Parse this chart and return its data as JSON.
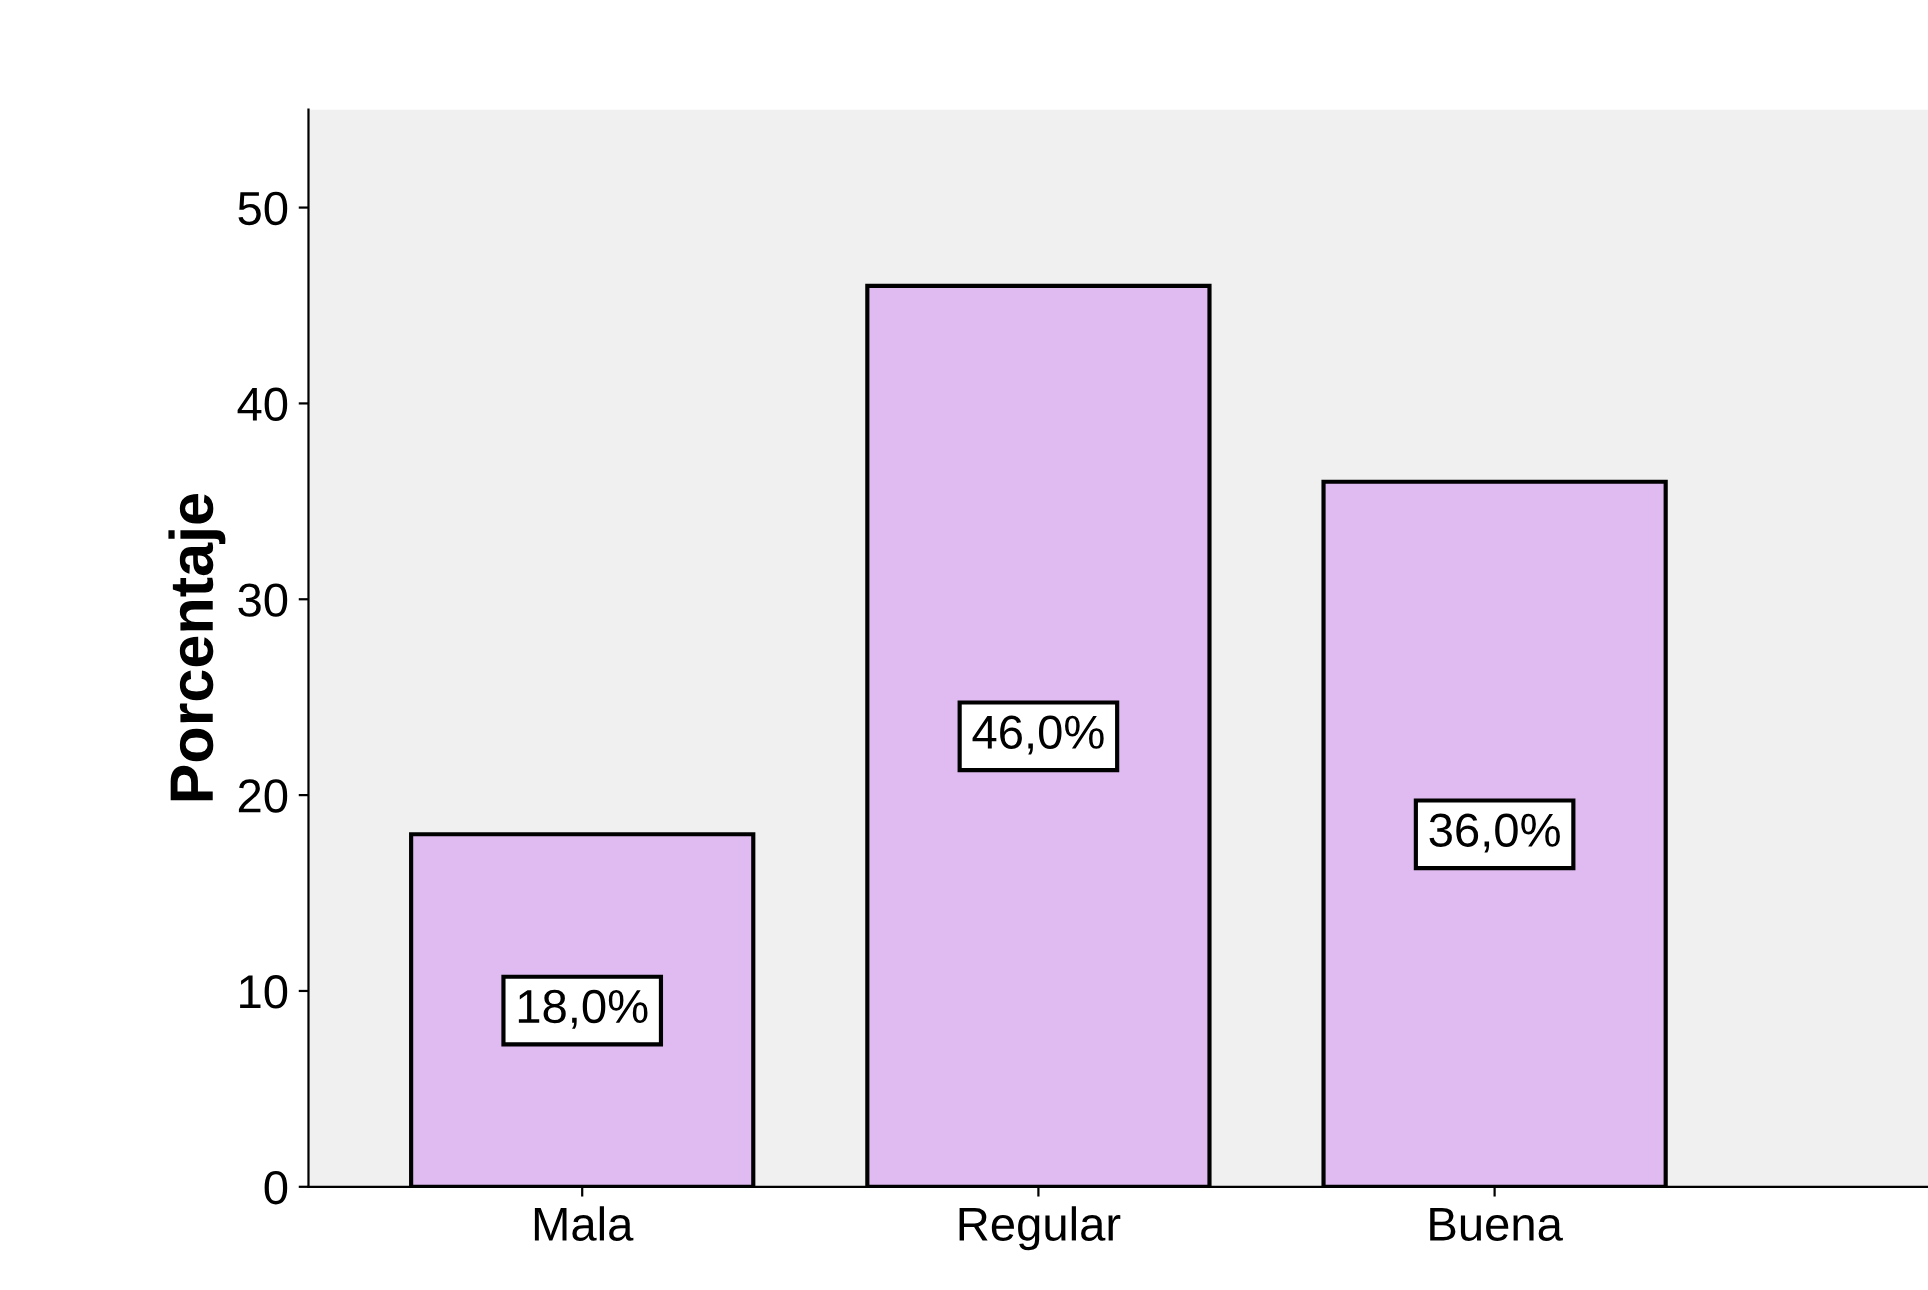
{
  "chart_data": {
    "type": "bar",
    "ylabel": "Porcentaje",
    "categories": [
      "Mala",
      "Regular",
      "Buena"
    ],
    "values": [
      18.0,
      46.0,
      36.0
    ],
    "value_labels": [
      "18,0%",
      "46,0%",
      "36,0%"
    ],
    "color": "#dfbbf1",
    "ylim": [
      0,
      55
    ],
    "yticks": [
      0,
      10,
      20,
      30,
      40,
      50
    ],
    "grid": false,
    "legend": false
  }
}
